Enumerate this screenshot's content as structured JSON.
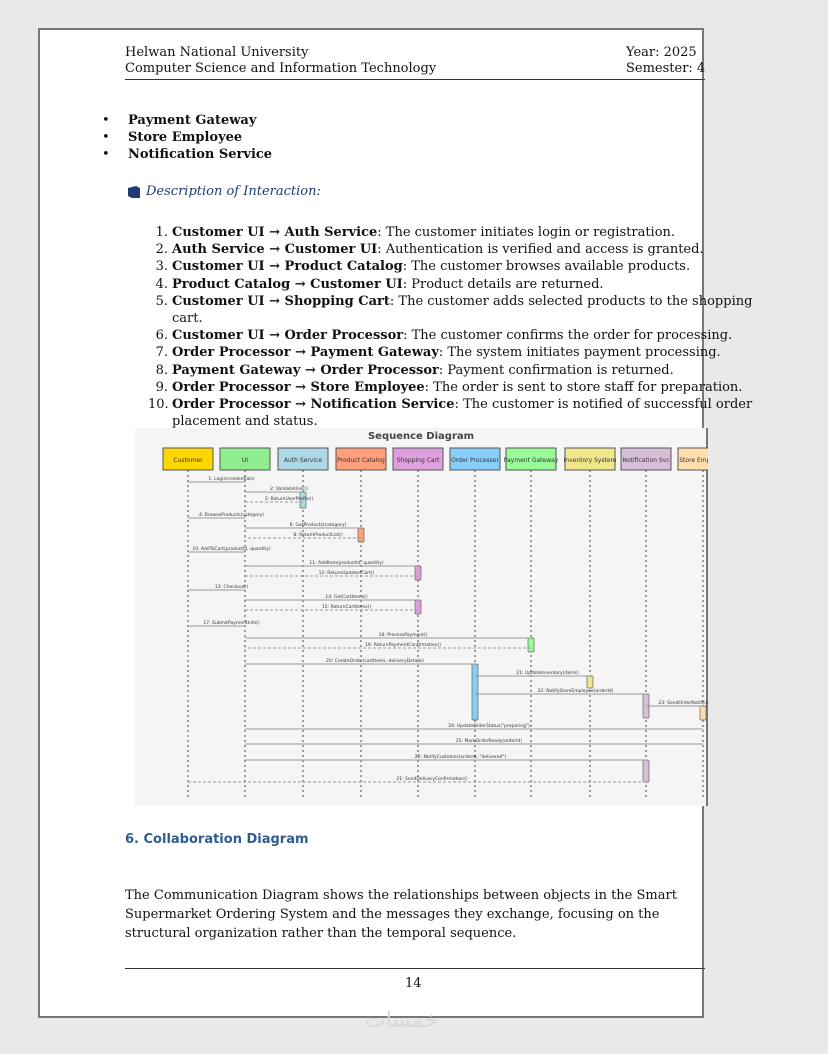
{
  "header": {
    "university": "Helwan National University",
    "department": "Computer Science and Information Technology",
    "year": "Year: 2025",
    "semester": "Semester: 4"
  },
  "bullets": [
    "Payment Gateway",
    "Store Employee",
    "Notification Service"
  ],
  "description_heading": "Description of Interaction:",
  "steps": [
    {
      "num": "1.",
      "bold": "Customer UI → Auth Service",
      "text": ": The customer initiates login or registration."
    },
    {
      "num": "2.",
      "bold": "Auth Service → Customer UI",
      "text": ": Authentication is verified and access is granted."
    },
    {
      "num": "3.",
      "bold": "Customer UI → Product Catalog",
      "text": ": The customer browses available products."
    },
    {
      "num": "4.",
      "bold": "Product Catalog → Customer UI",
      "text": ": Product details are returned."
    },
    {
      "num": "5.",
      "bold": "Customer UI → Shopping Cart",
      "text": ": The customer adds selected products to the shopping cart."
    },
    {
      "num": "6.",
      "bold": "Customer UI → Order Processor",
      "text": ": The customer confirms the order for processing."
    },
    {
      "num": "7.",
      "bold": "Order Processor → Payment Gateway",
      "text": ": The system initiates payment processing."
    },
    {
      "num": "8.",
      "bold": "Payment Gateway → Order Processor",
      "text": ": Payment confirmation is returned."
    },
    {
      "num": "9.",
      "bold": "Order Processor → Store Employee",
      "text": ": The order is sent to store staff for preparation."
    },
    {
      "num": "10.",
      "bold": "Order Processor → Notification Service",
      "text": ": The customer is notified of successful order placement and status."
    }
  ],
  "diagram": {
    "title": "Sequence Diagram",
    "participants": [
      {
        "name": "Customer",
        "color": "#ffd700"
      },
      {
        "name": "UI",
        "color": "#90ee90"
      },
      {
        "name": "Auth Service",
        "color": "#add8e6"
      },
      {
        "name": "Product Catalog",
        "color": "#ffa07a"
      },
      {
        "name": "Shopping Cart",
        "color": "#dda0dd"
      },
      {
        "name": "Order Processor",
        "color": "#87cefa"
      },
      {
        "name": "Payment Gateway",
        "color": "#98fb98"
      },
      {
        "name": "Inventory System",
        "color": "#f0e68c"
      },
      {
        "name": "Notification Svc",
        "color": "#d8bfd8"
      },
      {
        "name": "Store Employee",
        "color": "#ffdead"
      }
    ],
    "messages": [
      {
        "label": "1: Login(credentials)",
        "from": 0,
        "to": 1,
        "return": false
      },
      {
        "label": "2: ValidateUser()",
        "from": 1,
        "to": 2,
        "return": false
      },
      {
        "label": "3: ReturnUserProfile()",
        "from": 2,
        "to": 1,
        "return": true
      },
      {
        "label": "4: BrowseProducts(category)",
        "from": 0,
        "to": 1,
        "return": false
      },
      {
        "label": "6: GetProducts(category)",
        "from": 1,
        "to": 3,
        "return": false
      },
      {
        "label": "8: ReturnProductList()",
        "from": 3,
        "to": 1,
        "return": true
      },
      {
        "label": "10: AddToCart(productId, quantity)",
        "from": 0,
        "to": 1,
        "return": false
      },
      {
        "label": "11: AddItem(productId, quantity)",
        "from": 1,
        "to": 4,
        "return": false
      },
      {
        "label": "12: ReturnUpdatedCart()",
        "from": 4,
        "to": 1,
        "return": true
      },
      {
        "label": "13: Checkout()",
        "from": 0,
        "to": 1,
        "return": false
      },
      {
        "label": "14: GetCartItems()",
        "from": 1,
        "to": 4,
        "return": false
      },
      {
        "label": "15: ReturnCartItems()",
        "from": 4,
        "to": 1,
        "return": true
      },
      {
        "label": "17: SubmitPaymentInfo()",
        "from": 0,
        "to": 1,
        "return": false
      },
      {
        "label": "18: ProcessPayment()",
        "from": 1,
        "to": 6,
        "return": false
      },
      {
        "label": "19: ReturnPaymentConfirmation()",
        "from": 6,
        "to": 1,
        "return": true
      },
      {
        "label": "20: CreateOrder(cartItems, deliveryDetails)",
        "from": 1,
        "to": 5,
        "return": false
      },
      {
        "label": "21: UpdateInventory(items)",
        "from": 5,
        "to": 7,
        "return": false
      },
      {
        "label": "22: NotifyStoreEmployee(orderId)",
        "from": 5,
        "to": 8,
        "return": false
      },
      {
        "label": "23: SendOrderNotification()",
        "from": 8,
        "to": 9,
        "return": false
      },
      {
        "label": "24: UpdateOrderStatus(\"preparing\")",
        "from": 9,
        "to": 1,
        "return": false
      },
      {
        "label": "25: MarkOrderReady(orderId)",
        "from": 9,
        "to": 1,
        "return": false
      },
      {
        "label": "26: NotifyCustomer(orderId, \"delivered\")",
        "from": 1,
        "to": 8,
        "return": false
      },
      {
        "label": "21: SendDeliveryConfirmation()",
        "from": 8,
        "to": 0,
        "return": true
      }
    ]
  },
  "section_heading": "6. Collaboration Diagram",
  "paragraph": "The Communication Diagram shows the relationships between objects in the Smart Supermarket Ordering System and the messages they exchange, focusing on the structural organization rather than the temporal sequence.",
  "page_number": "14",
  "watermark": "خمسات"
}
